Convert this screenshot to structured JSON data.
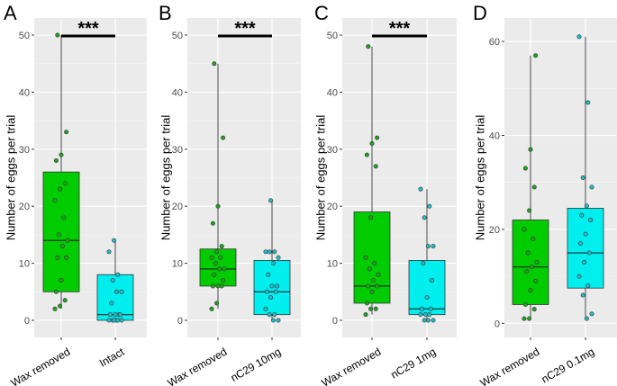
{
  "colors": {
    "panel_bg": "#EBEBEB",
    "grid_major": "#FFFFFF",
    "grid_minor": "#F5F5F5",
    "green": "#00CC00",
    "cyan": "#00EEEE",
    "point_green": "#1FA21F",
    "point_cyan": "#22BBC8",
    "whisker": "#4D4D4D",
    "outline": "#333333"
  },
  "chart_data": [
    {
      "type": "box",
      "panel": "A",
      "title": "",
      "xlabel": "",
      "ylabel": "Number of eggs per trial",
      "ylim": [
        -3,
        53
      ],
      "yticks": [
        0,
        10,
        20,
        30,
        40,
        50
      ],
      "significance": "***",
      "categories": [
        "Wax removed",
        "Intact"
      ],
      "boxes": [
        {
          "category": "Wax removed",
          "color": "green",
          "min": 2,
          "q1": 5,
          "median": 14,
          "q3": 26,
          "max": 50,
          "points": [
            2,
            2.5,
            3.5,
            5,
            7,
            11,
            11,
            13,
            14,
            15,
            18,
            21,
            23,
            24,
            28,
            29,
            33,
            50
          ]
        },
        {
          "category": "Intact",
          "color": "cyan",
          "min": 0,
          "q1": 0,
          "median": 1,
          "q3": 8,
          "max": 14,
          "points": [
            0,
            0,
            0,
            0,
            0,
            0,
            1,
            1,
            1,
            1,
            3,
            5,
            5,
            7,
            8,
            12,
            14
          ]
        }
      ]
    },
    {
      "type": "box",
      "panel": "B",
      "title": "",
      "xlabel": "",
      "ylabel": "Number of eggs per trial",
      "ylim": [
        -3,
        53
      ],
      "yticks": [
        0,
        10,
        20,
        30,
        40,
        50
      ],
      "significance": "***",
      "categories": [
        "Wax removed",
        "nC29 10mg"
      ],
      "boxes": [
        {
          "category": "Wax removed",
          "color": "green",
          "min": 2,
          "q1": 6,
          "median": 9,
          "q3": 12.5,
          "max": 45,
          "points": [
            2,
            3,
            6,
            6,
            6,
            7,
            8,
            9,
            9,
            10,
            11,
            11,
            12,
            13,
            17,
            20,
            32,
            45
          ]
        },
        {
          "category": "nC29 10mg",
          "color": "cyan",
          "min": 0,
          "q1": 1,
          "median": 5,
          "q3": 10.5,
          "max": 21,
          "points": [
            0,
            0,
            1,
            1,
            2,
            4,
            5,
            5,
            6,
            6,
            8,
            10,
            11,
            12,
            12,
            12,
            21
          ]
        }
      ]
    },
    {
      "type": "box",
      "panel": "C",
      "title": "",
      "xlabel": "",
      "ylabel": "Number of eggs per trial",
      "ylim": [
        -3,
        53
      ],
      "yticks": [
        0,
        10,
        20,
        30,
        40,
        50
      ],
      "significance": "***",
      "categories": [
        "Wax removed",
        "nC29 1mg"
      ],
      "boxes": [
        {
          "category": "Wax removed",
          "color": "green",
          "min": 1,
          "q1": 3,
          "median": 6,
          "q3": 19,
          "max": 48,
          "points": [
            1,
            2,
            2,
            3,
            5,
            6,
            6,
            7,
            8,
            9,
            10,
            11,
            18,
            27,
            29,
            31,
            32,
            48
          ]
        },
        {
          "category": "nC29 1mg",
          "color": "cyan",
          "min": 0,
          "q1": 1,
          "median": 2,
          "q3": 10.5,
          "max": 23,
          "points": [
            0,
            0,
            0,
            1,
            1,
            1,
            2,
            2,
            4,
            7,
            10,
            13,
            13,
            18,
            20,
            23
          ]
        }
      ]
    },
    {
      "type": "box",
      "panel": "D",
      "title": "",
      "xlabel": "",
      "ylabel": "Number of eggs per trial",
      "ylim": [
        -3,
        65
      ],
      "yticks": [
        0,
        20,
        40,
        60
      ],
      "significance": "",
      "categories": [
        "Wax removed",
        "nC29 0.1mg"
      ],
      "boxes": [
        {
          "category": "Wax removed",
          "color": "green",
          "min": 1,
          "q1": 4,
          "median": 12,
          "q3": 22,
          "max": 57,
          "points": [
            1,
            1,
            3,
            4,
            7,
            9,
            11,
            12,
            13,
            15,
            18,
            20,
            24,
            29,
            33,
            37,
            57
          ]
        },
        {
          "category": "nC29 0.1mg",
          "color": "cyan",
          "min": 1,
          "q1": 7.5,
          "median": 15,
          "q3": 24.5,
          "max": 61,
          "points": [
            1,
            2,
            6,
            8,
            10,
            13,
            15,
            17,
            19,
            22,
            23,
            25,
            29,
            31,
            47,
            61
          ]
        }
      ]
    }
  ]
}
